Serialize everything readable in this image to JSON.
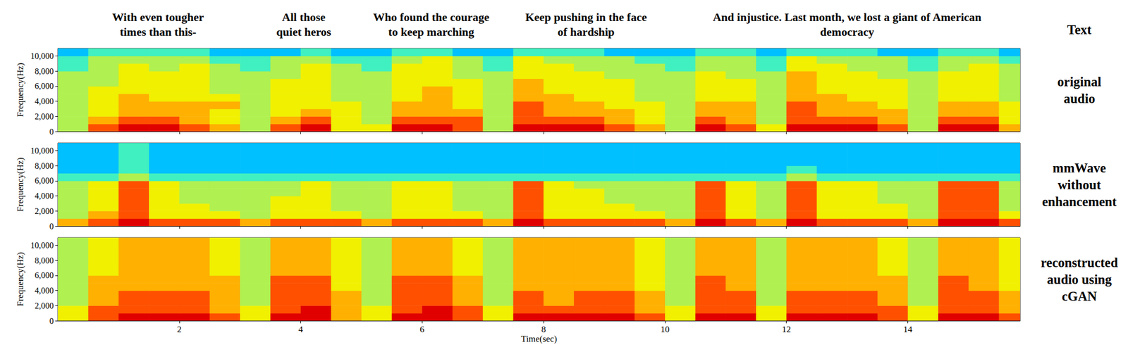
{
  "chart_data": [
    {
      "type": "heatmap",
      "title": "original\naudio",
      "y_label": "Frequency(Hz)",
      "x": [
        0.25,
        0.75,
        1.25,
        1.75,
        2.25,
        2.75,
        3.25,
        3.75,
        4.25,
        4.75,
        5.25,
        5.75,
        6.25,
        6.75,
        7.25,
        7.75,
        8.25,
        8.75,
        9.25,
        9.75,
        10.25,
        10.75,
        11.25,
        11.75,
        12.25,
        12.75,
        13.25,
        13.75,
        14.25,
        14.75,
        15.25,
        15.75
      ],
      "y": [
        500,
        1500,
        2500,
        3500,
        4500,
        5500,
        6500,
        7500,
        8500,
        9500,
        10500
      ],
      "values": [
        [
          5,
          8,
          9,
          9,
          8,
          7,
          5,
          8,
          9,
          6,
          6,
          9,
          9,
          8,
          5,
          9,
          9,
          9,
          8,
          7,
          5,
          9,
          8,
          6,
          9,
          9,
          9,
          8,
          5,
          9,
          9,
          7
        ],
        [
          5,
          7,
          8,
          8,
          7,
          6,
          5,
          7,
          8,
          6,
          5,
          8,
          8,
          8,
          5,
          8,
          8,
          8,
          7,
          6,
          5,
          8,
          7,
          5,
          8,
          8,
          8,
          7,
          5,
          8,
          8,
          6
        ],
        [
          5,
          6,
          7,
          7,
          7,
          6,
          5,
          6,
          7,
          6,
          5,
          7,
          7,
          7,
          5,
          8,
          7,
          7,
          7,
          6,
          5,
          7,
          7,
          5,
          8,
          7,
          7,
          7,
          5,
          7,
          7,
          6
        ],
        [
          5,
          6,
          7,
          7,
          7,
          7,
          5,
          6,
          6,
          6,
          5,
          7,
          7,
          6,
          5,
          8,
          7,
          7,
          6,
          6,
          5,
          7,
          7,
          5,
          8,
          7,
          7,
          6,
          5,
          7,
          7,
          6
        ],
        [
          5,
          6,
          7,
          6,
          6,
          6,
          5,
          6,
          6,
          5,
          5,
          6,
          7,
          6,
          5,
          7,
          7,
          6,
          6,
          5,
          5,
          6,
          6,
          5,
          7,
          7,
          6,
          6,
          5,
          6,
          6,
          5
        ],
        [
          5,
          6,
          6,
          6,
          6,
          5,
          5,
          6,
          6,
          5,
          5,
          6,
          7,
          6,
          5,
          7,
          6,
          6,
          6,
          5,
          5,
          6,
          6,
          5,
          7,
          6,
          6,
          6,
          5,
          6,
          6,
          5
        ],
        [
          5,
          5,
          6,
          6,
          6,
          5,
          5,
          6,
          6,
          5,
          5,
          6,
          6,
          6,
          5,
          7,
          6,
          6,
          6,
          5,
          5,
          6,
          6,
          5,
          7,
          6,
          6,
          6,
          5,
          6,
          6,
          5
        ],
        [
          5,
          5,
          6,
          6,
          6,
          5,
          5,
          5,
          6,
          5,
          5,
          6,
          6,
          5,
          5,
          6,
          6,
          6,
          5,
          5,
          5,
          6,
          5,
          5,
          7,
          6,
          6,
          5,
          5,
          6,
          6,
          5
        ],
        [
          4,
          5,
          6,
          5,
          6,
          5,
          4,
          5,
          6,
          5,
          4,
          6,
          6,
          5,
          4,
          6,
          6,
          5,
          5,
          5,
          4,
          5,
          5,
          4,
          6,
          6,
          5,
          5,
          4,
          5,
          6,
          5
        ],
        [
          4,
          5,
          5,
          5,
          5,
          4,
          4,
          5,
          5,
          4,
          4,
          5,
          6,
          5,
          4,
          6,
          5,
          5,
          5,
          4,
          4,
          5,
          5,
          4,
          6,
          5,
          5,
          5,
          4,
          5,
          5,
          4
        ],
        [
          3,
          4,
          4,
          4,
          4,
          3,
          3,
          3,
          4,
          3,
          3,
          4,
          4,
          3,
          3,
          4,
          4,
          4,
          3,
          3,
          3,
          4,
          4,
          3,
          4,
          4,
          4,
          3,
          3,
          4,
          4,
          3
        ]
      ],
      "value_range": [
        0,
        10
      ],
      "xlim": [
        0,
        15.85
      ],
      "xticks": [
        2,
        4,
        6,
        8,
        10,
        12,
        14
      ],
      "ylim": [
        0,
        11000
      ],
      "yticks": [
        0,
        2000,
        4000,
        6000,
        8000,
        10000
      ],
      "grid": false,
      "tick_labels": "y"
    },
    {
      "type": "heatmap",
      "title": "mmWave\nwithout\nenhancement",
      "y_label": "Frequency(Hz)",
      "x": [
        0.25,
        0.75,
        1.25,
        1.75,
        2.25,
        2.75,
        3.25,
        3.75,
        4.25,
        4.75,
        5.25,
        5.75,
        6.25,
        6.75,
        7.25,
        7.75,
        8.25,
        8.75,
        9.25,
        9.75,
        10.25,
        10.75,
        11.25,
        11.75,
        12.25,
        12.75,
        13.25,
        13.75,
        14.25,
        14.75,
        15.25,
        15.75
      ],
      "y": [
        500,
        1500,
        2500,
        3500,
        4500,
        5500,
        6500,
        7500,
        8500,
        9500,
        10500
      ],
      "values": [
        [
          7,
          8,
          9,
          8,
          8,
          8,
          7,
          8,
          8,
          8,
          7,
          8,
          8,
          8,
          7,
          9,
          8,
          8,
          8,
          8,
          7,
          9,
          8,
          7,
          9,
          8,
          8,
          8,
          7,
          9,
          9,
          8
        ],
        [
          5,
          7,
          8,
          6,
          6,
          6,
          5,
          6,
          6,
          6,
          5,
          6,
          6,
          6,
          5,
          8,
          6,
          6,
          6,
          6,
          5,
          8,
          6,
          5,
          8,
          6,
          6,
          6,
          5,
          8,
          8,
          6
        ],
        [
          5,
          6,
          8,
          6,
          6,
          5,
          5,
          6,
          6,
          5,
          5,
          6,
          6,
          5,
          5,
          8,
          6,
          6,
          6,
          5,
          5,
          8,
          6,
          5,
          8,
          6,
          6,
          6,
          5,
          8,
          8,
          5
        ],
        [
          5,
          6,
          8,
          6,
          5,
          5,
          5,
          6,
          6,
          5,
          5,
          6,
          6,
          5,
          5,
          8,
          6,
          6,
          5,
          5,
          5,
          8,
          6,
          5,
          8,
          6,
          6,
          5,
          5,
          8,
          8,
          5
        ],
        [
          5,
          6,
          8,
          6,
          5,
          5,
          5,
          5,
          6,
          5,
          5,
          6,
          6,
          5,
          5,
          8,
          6,
          6,
          5,
          5,
          5,
          8,
          6,
          5,
          8,
          6,
          6,
          5,
          5,
          8,
          8,
          5
        ],
        [
          5,
          6,
          8,
          6,
          5,
          5,
          5,
          5,
          6,
          5,
          5,
          6,
          6,
          5,
          5,
          8,
          6,
          5,
          5,
          5,
          5,
          8,
          6,
          5,
          8,
          6,
          6,
          5,
          5,
          8,
          8,
          5
        ],
        [
          4,
          4,
          5,
          4,
          4,
          4,
          4,
          4,
          4,
          4,
          4,
          4,
          4,
          4,
          4,
          4,
          4,
          4,
          4,
          4,
          4,
          4,
          4,
          4,
          5,
          4,
          4,
          4,
          4,
          4,
          4,
          4
        ],
        [
          3,
          3,
          4,
          3,
          3,
          3,
          3,
          3,
          3,
          3,
          3,
          3,
          3,
          3,
          3,
          3,
          3,
          3,
          3,
          3,
          3,
          3,
          3,
          3,
          4,
          3,
          3,
          3,
          3,
          3,
          3,
          3
        ],
        [
          3,
          3,
          4,
          3,
          3,
          3,
          3,
          3,
          3,
          3,
          3,
          3,
          3,
          3,
          3,
          3,
          3,
          3,
          3,
          3,
          3,
          3,
          3,
          3,
          3,
          3,
          3,
          3,
          3,
          3,
          3,
          3
        ],
        [
          3,
          3,
          4,
          3,
          3,
          3,
          3,
          3,
          3,
          3,
          3,
          3,
          3,
          3,
          3,
          3,
          3,
          3,
          3,
          3,
          3,
          3,
          3,
          3,
          3,
          3,
          3,
          3,
          3,
          3,
          3,
          3
        ],
        [
          3,
          3,
          4,
          3,
          3,
          3,
          3,
          3,
          3,
          3,
          3,
          3,
          3,
          3,
          3,
          3,
          3,
          3,
          3,
          3,
          3,
          3,
          3,
          3,
          3,
          3,
          3,
          3,
          3,
          3,
          3,
          3
        ]
      ],
      "value_range": [
        0,
        10
      ],
      "xlim": [
        0,
        15.85
      ],
      "xticks": [
        2,
        4,
        6,
        8,
        10,
        12,
        14
      ],
      "ylim": [
        0,
        11000
      ],
      "yticks": [
        0,
        2000,
        4000,
        6000,
        8000,
        10000
      ],
      "grid": false,
      "tick_labels": "y"
    },
    {
      "type": "heatmap",
      "title": "reconstructed\naudio using\ncGAN",
      "y_label": "Frequency(Hz)",
      "x_label": "Time(sec)",
      "x": [
        0.25,
        0.75,
        1.25,
        1.75,
        2.25,
        2.75,
        3.25,
        3.75,
        4.25,
        4.75,
        5.25,
        5.75,
        6.25,
        6.75,
        7.25,
        7.75,
        8.25,
        8.75,
        9.25,
        9.75,
        10.25,
        10.75,
        11.25,
        11.75,
        12.25,
        12.75,
        13.25,
        13.75,
        14.25,
        14.75,
        15.25,
        15.75
      ],
      "y": [
        500,
        1500,
        2500,
        3500,
        4500,
        5500,
        6500,
        7500,
        8500,
        9500,
        10500
      ],
      "values": [
        [
          6,
          8,
          9,
          9,
          9,
          8,
          6,
          9,
          9,
          7,
          6,
          9,
          9,
          8,
          6,
          9,
          9,
          9,
          9,
          8,
          6,
          9,
          9,
          6,
          9,
          9,
          9,
          8,
          6,
          9,
          9,
          8
        ],
        [
          6,
          8,
          8,
          8,
          8,
          7,
          6,
          8,
          9,
          7,
          6,
          8,
          9,
          8,
          6,
          8,
          8,
          8,
          8,
          7,
          6,
          8,
          8,
          6,
          8,
          8,
          8,
          8,
          6,
          8,
          8,
          7
        ],
        [
          5,
          7,
          8,
          8,
          8,
          7,
          5,
          8,
          8,
          7,
          5,
          8,
          8,
          7,
          5,
          8,
          7,
          8,
          8,
          7,
          5,
          8,
          8,
          5,
          8,
          8,
          8,
          7,
          5,
          8,
          8,
          7
        ],
        [
          5,
          7,
          8,
          8,
          8,
          7,
          5,
          8,
          8,
          7,
          5,
          8,
          8,
          7,
          5,
          8,
          7,
          8,
          8,
          7,
          5,
          8,
          8,
          5,
          8,
          8,
          8,
          7,
          5,
          8,
          8,
          7
        ],
        [
          5,
          7,
          7,
          7,
          7,
          7,
          5,
          8,
          8,
          6,
          5,
          8,
          8,
          7,
          5,
          7,
          7,
          7,
          7,
          6,
          5,
          8,
          7,
          5,
          7,
          7,
          7,
          7,
          5,
          8,
          7,
          6
        ],
        [
          5,
          7,
          7,
          7,
          7,
          7,
          5,
          8,
          8,
          6,
          5,
          8,
          8,
          7,
          5,
          7,
          7,
          7,
          7,
          6,
          5,
          8,
          7,
          5,
          7,
          7,
          7,
          7,
          5,
          8,
          7,
          6
        ],
        [
          5,
          6,
          7,
          7,
          7,
          6,
          5,
          7,
          7,
          6,
          5,
          7,
          7,
          6,
          5,
          7,
          7,
          7,
          7,
          6,
          5,
          7,
          7,
          5,
          7,
          7,
          7,
          6,
          5,
          7,
          7,
          6
        ],
        [
          5,
          6,
          7,
          7,
          7,
          6,
          5,
          7,
          7,
          6,
          5,
          7,
          7,
          6,
          5,
          7,
          7,
          7,
          7,
          6,
          5,
          7,
          7,
          5,
          7,
          7,
          7,
          6,
          5,
          7,
          7,
          6
        ],
        [
          5,
          6,
          7,
          7,
          7,
          6,
          5,
          7,
          7,
          6,
          5,
          7,
          7,
          6,
          5,
          7,
          7,
          7,
          7,
          6,
          5,
          7,
          7,
          5,
          7,
          7,
          7,
          6,
          5,
          7,
          7,
          6
        ],
        [
          5,
          6,
          7,
          7,
          7,
          6,
          5,
          7,
          7,
          6,
          5,
          7,
          7,
          6,
          5,
          7,
          7,
          7,
          7,
          6,
          5,
          7,
          7,
          5,
          7,
          7,
          7,
          6,
          5,
          7,
          7,
          6
        ],
        [
          5,
          6,
          7,
          7,
          7,
          6,
          5,
          7,
          7,
          6,
          5,
          7,
          7,
          6,
          5,
          7,
          7,
          7,
          7,
          6,
          5,
          7,
          7,
          5,
          7,
          7,
          7,
          6,
          5,
          7,
          7,
          6
        ]
      ],
      "value_range": [
        0,
        10
      ],
      "xlim": [
        0,
        15.85
      ],
      "xticks": [
        2,
        4,
        6,
        8,
        10,
        12,
        14
      ],
      "ylim": [
        0,
        11000
      ],
      "yticks": [
        0,
        2000,
        4000,
        6000,
        8000,
        10000
      ],
      "grid": false
    }
  ],
  "annotations": {
    "label": "Text",
    "phrases": [
      {
        "text": "With even tougher\ntimes than this-",
        "x": 1.65
      },
      {
        "text": "All those\nquiet heros",
        "x": 4.05
      },
      {
        "text": "Who found the courage\nto keep marching",
        "x": 6.15
      },
      {
        "text": "Keep pushing in the face\nof hardship",
        "x": 8.7
      },
      {
        "text": "And injustice. Last month, we lost a giant of American\ndemocracy",
        "x": 13.0
      }
    ]
  }
}
